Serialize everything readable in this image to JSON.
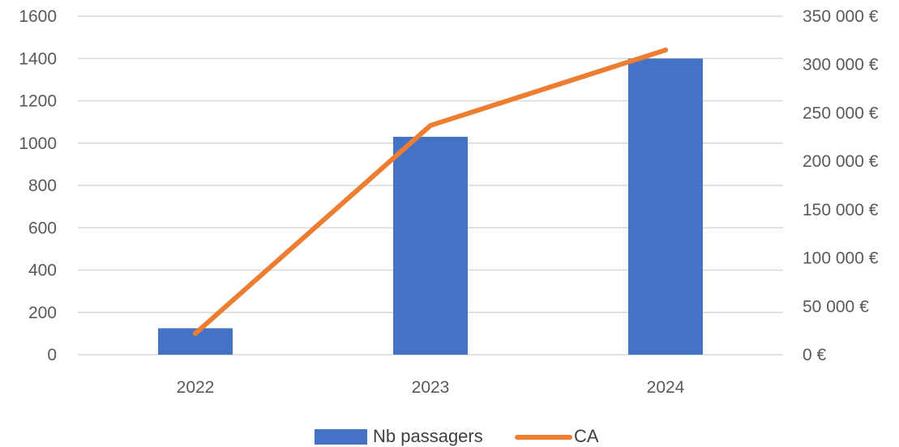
{
  "chart_data": {
    "type": "bar",
    "categories": [
      "2022",
      "2023",
      "2024"
    ],
    "series": [
      {
        "name": "Nb passagers",
        "type": "bar",
        "axis": "left",
        "values": [
          125,
          1030,
          1400
        ]
      },
      {
        "name": "CA",
        "type": "line",
        "axis": "right",
        "values": [
          22000,
          237000,
          315000
        ]
      }
    ],
    "y_left": {
      "ylim": [
        0,
        1600
      ],
      "ticks": [
        0,
        200,
        400,
        600,
        800,
        1000,
        1200,
        1400,
        1600
      ],
      "tick_labels": [
        "0",
        "200",
        "400",
        "600",
        "800",
        "1000",
        "1200",
        "1400",
        "1600"
      ]
    },
    "y_right": {
      "ylim": [
        0,
        350000
      ],
      "ticks": [
        0,
        50000,
        100000,
        150000,
        200000,
        250000,
        300000,
        350000
      ],
      "tick_labels": [
        "0 €",
        "50 000 €",
        "100 000 €",
        "150 000 €",
        "200 000 €",
        "250 000 €",
        "300 000 €",
        "350 000 €"
      ]
    },
    "grid": true,
    "legend": "bottom",
    "colors": {
      "bar": "#4472C4",
      "line": "#ED7D31",
      "grid": "#D9D9D9",
      "tick_text": "#595959",
      "legend_text": "#404040"
    }
  }
}
